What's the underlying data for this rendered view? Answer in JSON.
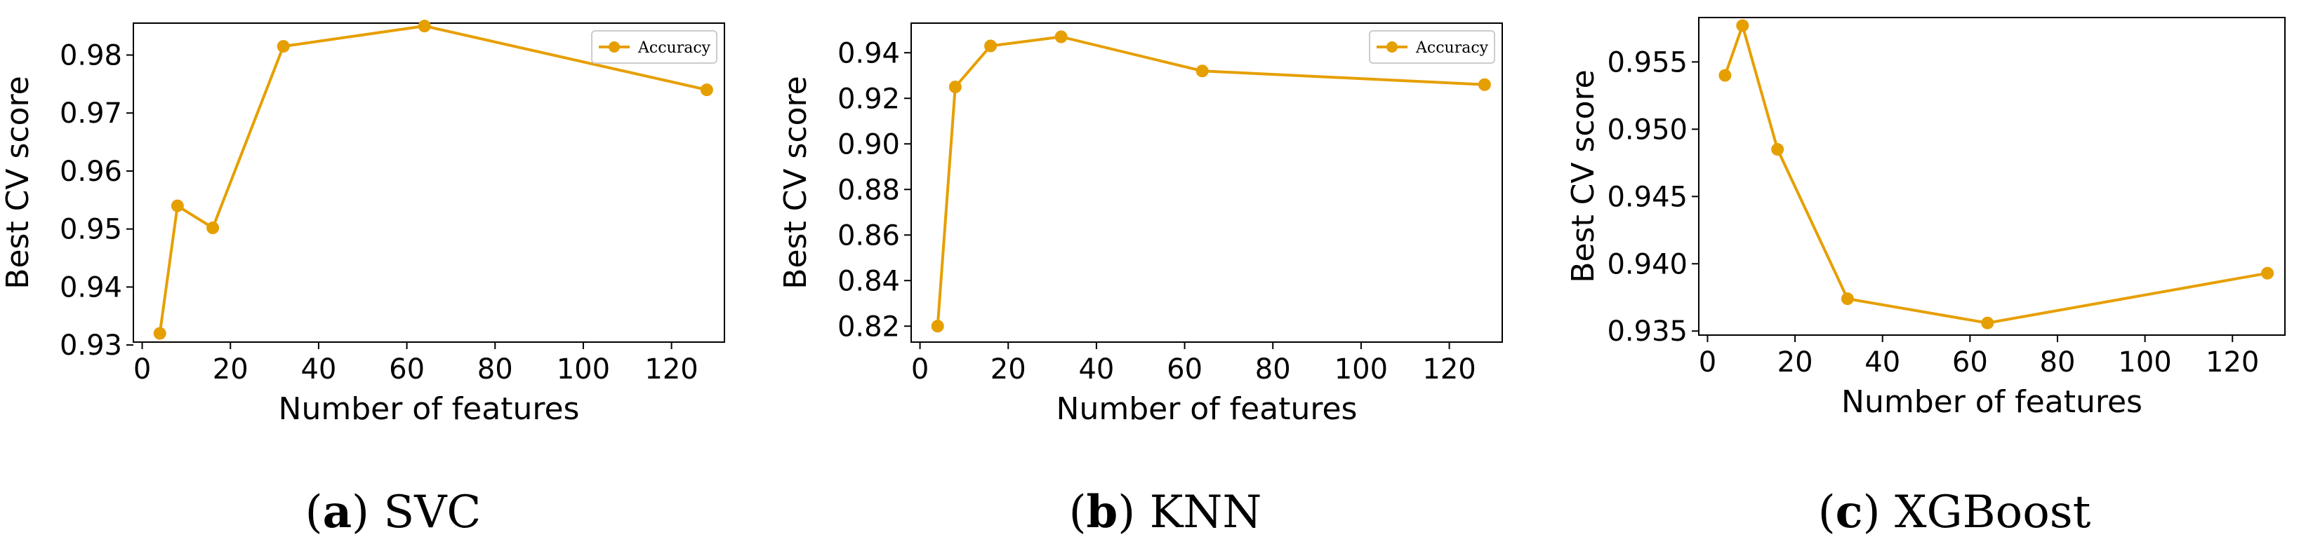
{
  "line_color": "#E69F00",
  "chart_data": [
    {
      "type": "line",
      "caption_label": "a",
      "caption_title": "SVC",
      "xlabel": "Number of features",
      "ylabel": "Best CV score",
      "xlim": [
        -2,
        132
      ],
      "ylim": [
        0.9305,
        0.9855
      ],
      "xticks": [
        0,
        20,
        40,
        60,
        80,
        100,
        120
      ],
      "yticks": [
        0.93,
        0.94,
        0.95,
        0.96,
        0.97,
        0.98
      ],
      "ytick_labels": [
        "0.93",
        "0.94",
        "0.95",
        "0.96",
        "0.97",
        "0.98"
      ],
      "grid": false,
      "legend": "top-right",
      "series": [
        {
          "name": "Accuracy",
          "x": [
            4,
            8,
            16,
            32,
            64,
            128
          ],
          "y": [
            0.932,
            0.954,
            0.9502,
            0.9815,
            0.985,
            0.974
          ]
        }
      ]
    },
    {
      "type": "line",
      "caption_label": "b",
      "caption_title": "KNN",
      "xlabel": "Number of features",
      "ylabel": "Best CV score",
      "xlim": [
        -2,
        132
      ],
      "ylim": [
        0.813,
        0.953
      ],
      "xticks": [
        0,
        20,
        40,
        60,
        80,
        100,
        120
      ],
      "yticks": [
        0.82,
        0.84,
        0.86,
        0.88,
        0.9,
        0.92,
        0.94
      ],
      "ytick_labels": [
        "0.82",
        "0.84",
        "0.86",
        "0.88",
        "0.90",
        "0.92",
        "0.94"
      ],
      "grid": false,
      "legend": "top-right",
      "series": [
        {
          "name": "Accuracy",
          "x": [
            4,
            8,
            16,
            32,
            64,
            128
          ],
          "y": [
            0.82,
            0.925,
            0.943,
            0.947,
            0.932,
            0.926
          ]
        }
      ]
    },
    {
      "type": "line",
      "caption_label": "c",
      "caption_title": "XGBoost",
      "xlabel": "Number of features",
      "ylabel": "Best CV score",
      "xlim": [
        -2,
        132
      ],
      "ylim": [
        0.9347,
        0.9583
      ],
      "xticks": [
        0,
        20,
        40,
        60,
        80,
        100,
        120
      ],
      "yticks": [
        0.935,
        0.94,
        0.945,
        0.95,
        0.955
      ],
      "ytick_labels": [
        "0.935",
        "0.940",
        "0.945",
        "0.950",
        "0.955"
      ],
      "grid": false,
      "legend": "none",
      "series": [
        {
          "x": [
            4,
            8,
            16,
            32,
            64,
            128
          ],
          "y": [
            0.954,
            0.9577,
            0.9485,
            0.9374,
            0.9356,
            0.9393
          ]
        }
      ]
    }
  ]
}
